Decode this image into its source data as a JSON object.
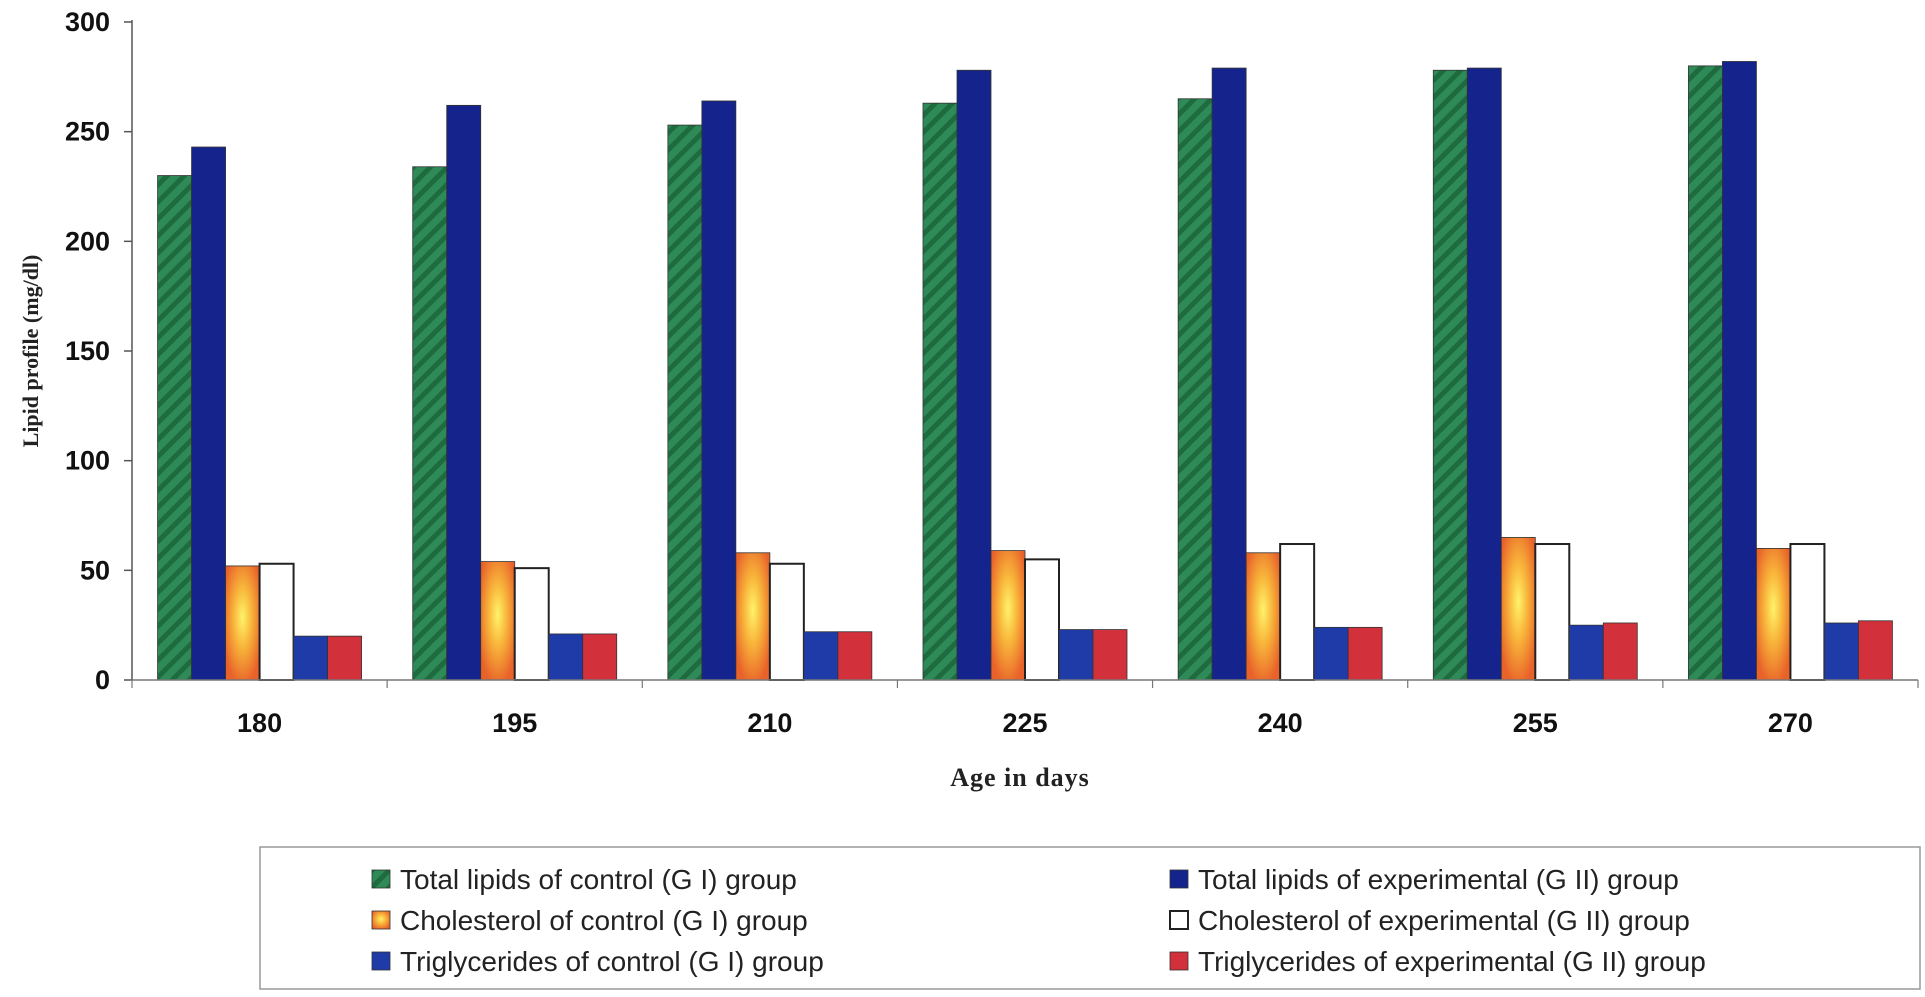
{
  "chart_data": {
    "type": "bar",
    "title": "",
    "xlabel": "Age in days",
    "ylabel": "Lipid profile (mg/dl)",
    "ylim": [
      0,
      300
    ],
    "yticks": [
      "0",
      "50",
      "100",
      "150",
      "200",
      "250",
      "300"
    ],
    "categories": [
      "180",
      "195",
      "210",
      "225",
      "240",
      "255",
      "270"
    ],
    "grid": false,
    "legend_position": "bottom",
    "series": [
      {
        "name": "Total lipids of control (G I) group",
        "color": "#2e8b57",
        "pattern": "diagonal-stripes",
        "values": [
          230,
          234,
          253,
          263,
          265,
          278,
          280
        ]
      },
      {
        "name": "Total lipids of experimental (G II) group",
        "color": "#14248c",
        "pattern": "solid",
        "values": [
          243,
          262,
          264,
          278,
          279,
          279,
          282
        ]
      },
      {
        "name": "Cholesterol of control (G I) group",
        "color": "#f39a2e",
        "pattern": "yellow-glow",
        "values": [
          52,
          54,
          58,
          59,
          58,
          65,
          60
        ]
      },
      {
        "name": "Cholesterol of experimental (G II) group",
        "color": "#ffffff",
        "pattern": "outline",
        "values": [
          53,
          51,
          53,
          55,
          62,
          62,
          62
        ]
      },
      {
        "name": "Triglycerides of control (G I) group",
        "color": "#1e3ba8",
        "pattern": "solid",
        "values": [
          20,
          21,
          22,
          23,
          24,
          25,
          26
        ]
      },
      {
        "name": "Triglycerides of experimental (G II) group",
        "color": "#d2303a",
        "pattern": "solid",
        "values": [
          20,
          21,
          22,
          23,
          24,
          26,
          27
        ]
      }
    ]
  }
}
